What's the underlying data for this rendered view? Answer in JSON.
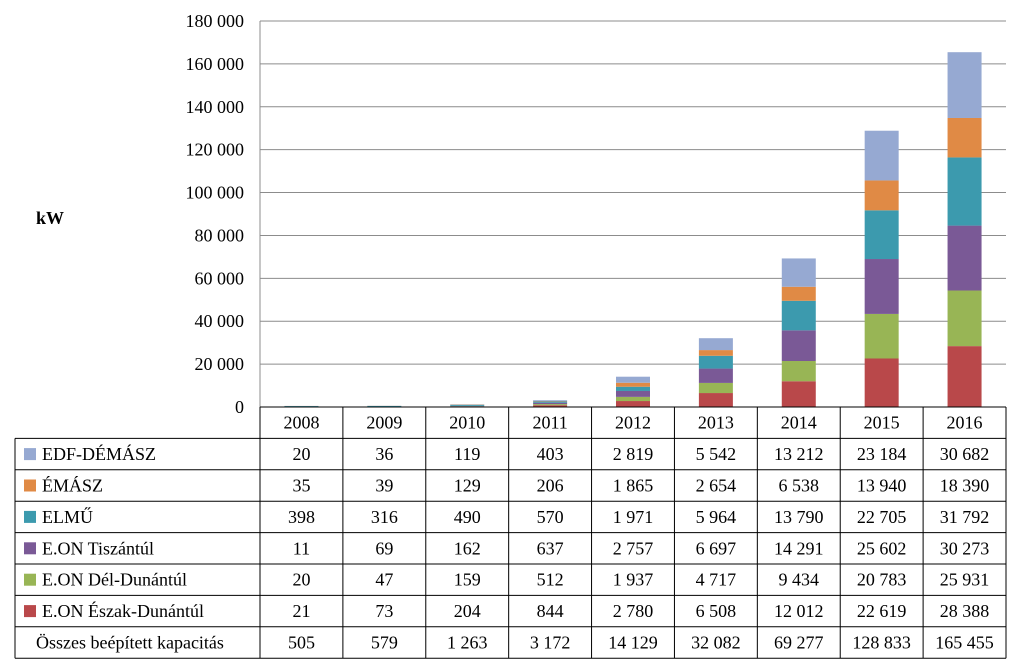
{
  "chart_data": {
    "type": "bar",
    "stacked": true,
    "ylabel": "kW",
    "ylim": [
      0,
      180000
    ],
    "yticks": [
      0,
      20000,
      40000,
      60000,
      80000,
      100000,
      120000,
      140000,
      160000,
      180000
    ],
    "ytick_labels": [
      "0",
      "20 000",
      "40 000",
      "60 000",
      "80 000",
      "100 000",
      "120 000",
      "140 000",
      "160 000",
      "180 000"
    ],
    "grid": true,
    "legend_placement": "data-table-left",
    "categories": [
      "2008",
      "2009",
      "2010",
      "2011",
      "2012",
      "2013",
      "2014",
      "2015",
      "2016"
    ],
    "series": [
      {
        "name": "EDF-DÉMÁSZ",
        "color": "#96A9D2",
        "values": [
          20,
          36,
          119,
          403,
          2819,
          5542,
          13212,
          23184,
          30682
        ],
        "labels": [
          "20",
          "36",
          "119",
          "403",
          "2 819",
          "5 542",
          "13 212",
          "23 184",
          "30 682"
        ]
      },
      {
        "name": "ÉMÁSZ",
        "color": "#E08A45",
        "values": [
          35,
          39,
          129,
          206,
          1865,
          2654,
          6538,
          13940,
          18390
        ],
        "labels": [
          "35",
          "39",
          "129",
          "206",
          "1 865",
          "2 654",
          "6 538",
          "13 940",
          "18 390"
        ]
      },
      {
        "name": "ELMŰ",
        "color": "#3C9AAE",
        "values": [
          398,
          316,
          490,
          570,
          1971,
          5964,
          13790,
          22705,
          31792
        ],
        "labels": [
          "398",
          "316",
          "490",
          "570",
          "1 971",
          "5 964",
          "13 790",
          "22 705",
          "31 792"
        ]
      },
      {
        "name": "E.ON Tiszántúl",
        "color": "#7A5996",
        "values": [
          11,
          69,
          162,
          637,
          2757,
          6697,
          14291,
          25602,
          30273
        ],
        "labels": [
          "11",
          "69",
          "162",
          "637",
          "2 757",
          "6 697",
          "14 291",
          "25 602",
          "30 273"
        ]
      },
      {
        "name": "E.ON Dél-Dunántúl",
        "color": "#98B555",
        "values": [
          20,
          47,
          159,
          512,
          1937,
          4717,
          9434,
          20783,
          25931
        ],
        "labels": [
          "20",
          "47",
          "159",
          "512",
          "1 937",
          "4 717",
          "9 434",
          "20 783",
          "25 931"
        ]
      },
      {
        "name": "E.ON Észak-Dunántúl",
        "color": "#B9484A",
        "values": [
          21,
          73,
          204,
          844,
          2780,
          6508,
          12012,
          22619,
          28388
        ],
        "labels": [
          "21",
          "73",
          "204",
          "844",
          "2 780",
          "6 508",
          "12 012",
          "22 619",
          "28 388"
        ]
      }
    ],
    "total": {
      "name": "Összes beépített kapacitás",
      "labels": [
        "505",
        "579",
        "1 263",
        "3 172",
        "14 129",
        "32 082",
        "69 277",
        "128 833",
        "165 455"
      ]
    },
    "stack_order": [
      "E.ON Észak-Dunántúl",
      "E.ON Dél-Dunántúl",
      "E.ON Tiszántúl",
      "ELMŰ",
      "ÉMÁSZ",
      "EDF-DÉMÁSZ"
    ]
  }
}
